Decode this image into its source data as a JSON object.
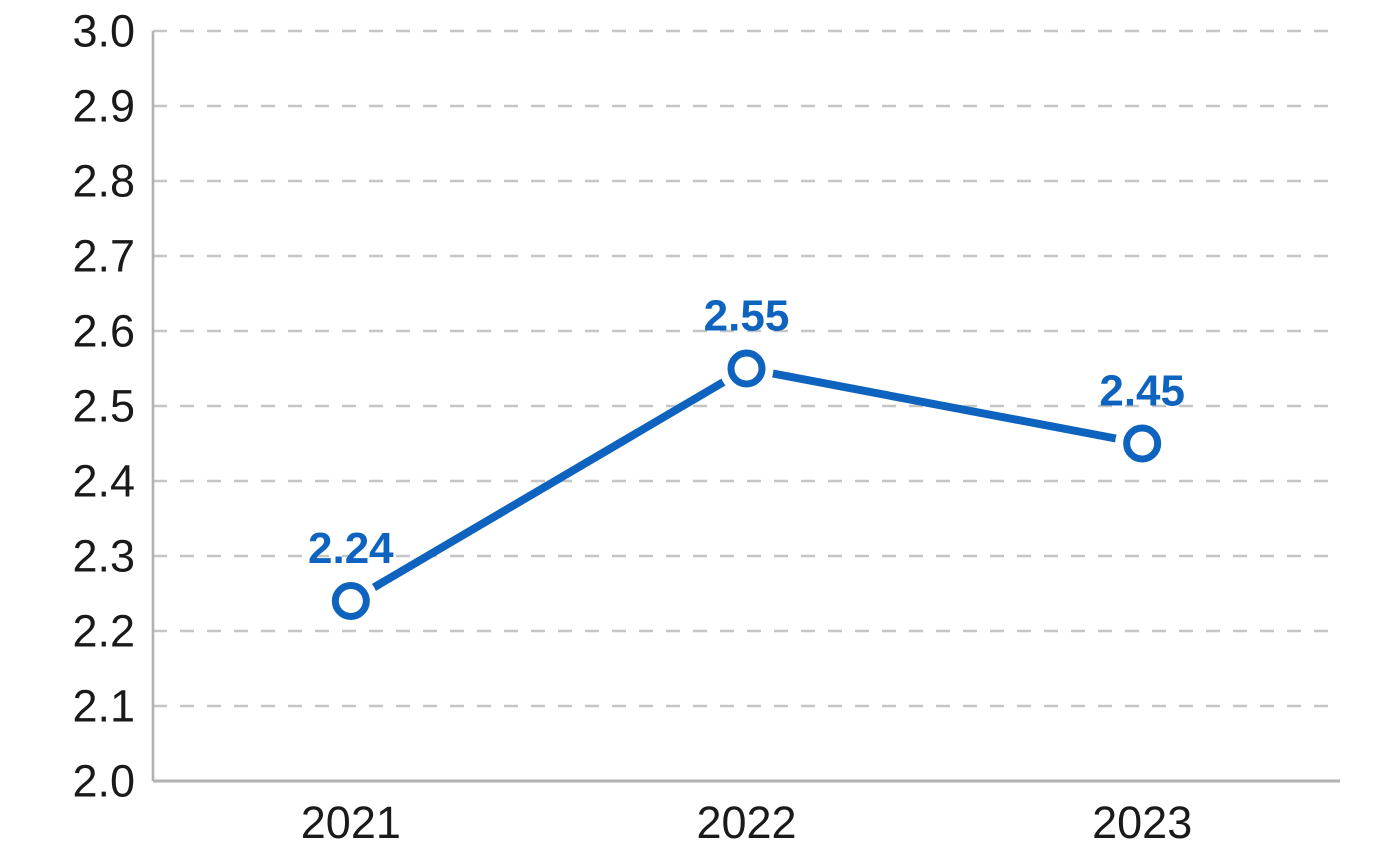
{
  "chart_data": {
    "type": "line",
    "title": "",
    "xlabel": "",
    "ylabel": "",
    "categories": [
      "2021",
      "2022",
      "2023"
    ],
    "series": [
      {
        "name": "value",
        "values": [
          2.24,
          2.55,
          2.45
        ]
      }
    ],
    "data_labels": [
      "2.24",
      "2.55",
      "2.45"
    ],
    "ylim": [
      2.0,
      3.0
    ],
    "ytick_labels": [
      "2.0",
      "2.1",
      "2.2",
      "2.3",
      "2.4",
      "2.5",
      "2.6",
      "2.7",
      "2.8",
      "2.9",
      "3.0"
    ],
    "grid": "horizontal-dashed",
    "legend": "none",
    "colors": {
      "line": "#0d63bd",
      "marker_stroke": "#0d63bd",
      "marker_fill": "#ffffff",
      "data_label_text": "#0d63bd",
      "axis_text": "#1a1a1a",
      "gridline": "#c5c5c5",
      "axis_line": "#b2b2b2",
      "background": "#ffffff"
    }
  }
}
